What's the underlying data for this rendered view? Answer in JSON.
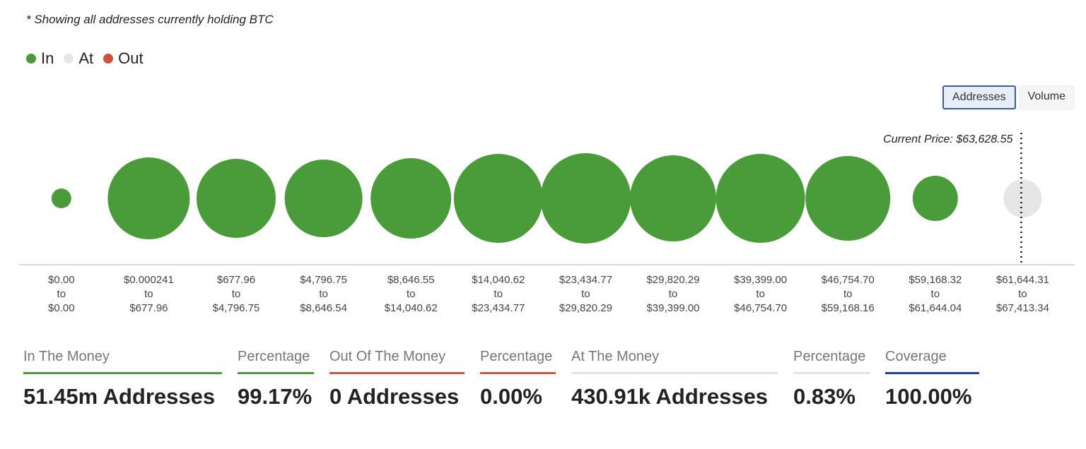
{
  "note": "* Showing all addresses currently holding BTC",
  "buttons": [
    "Addresses",
    "Volume"
  ],
  "chart_data": {
    "type": "bubble",
    "categories": [
      "$0.00 to $0.00",
      "$0.000241 to $677.96",
      "$677.96 to $4,796.75",
      "$4,796.75 to $8,646.54",
      "$8,646.55 to $14,040.62",
      "$14,040.62 to $23,434.77",
      "$23,434.77 to $29,820.29",
      "$29,820.29 to $39,399.00",
      "$39,399.00 to $46,754.70",
      "$46,754.70 to $59,168.16",
      "$59,168.32 to $61,644.04",
      "$61,644.31 to $67,413.34"
    ],
    "series": [
      {
        "name": "In",
        "color": "#4a9c3a",
        "values": [
          28,
          116,
          112,
          110,
          114,
          126,
          128,
          122,
          126,
          120,
          64,
          null
        ]
      },
      {
        "name": "At",
        "color": "#e6e6e6",
        "values": [
          null,
          null,
          null,
          null,
          null,
          null,
          null,
          null,
          null,
          null,
          null,
          54
        ]
      },
      {
        "name": "Out",
        "color": "#c9553f",
        "values": [
          null,
          null,
          null,
          null,
          null,
          null,
          null,
          null,
          null,
          null,
          null,
          null
        ]
      }
    ],
    "annotation": "Current Price: $63,628.55"
  },
  "stats": [
    {
      "label": "In The Money",
      "value": "51.45m Addresses",
      "color": "#4a9c3a"
    },
    {
      "label": "Percentage",
      "value": "99.17%",
      "color": "#4a9c3a"
    },
    {
      "label": "Out Of The Money",
      "value": "0 Addresses",
      "color": "#c9553f"
    },
    {
      "label": "Percentage",
      "value": "0.00%",
      "color": "#c9553f"
    },
    {
      "label": "At The Money",
      "value": "430.91k Addresses",
      "color": "#e3e3e3"
    },
    {
      "label": "Percentage",
      "value": "0.83%",
      "color": "#e3e3e3"
    },
    {
      "label": "Coverage",
      "value": "100.00%",
      "color": "#1f3fae"
    }
  ]
}
